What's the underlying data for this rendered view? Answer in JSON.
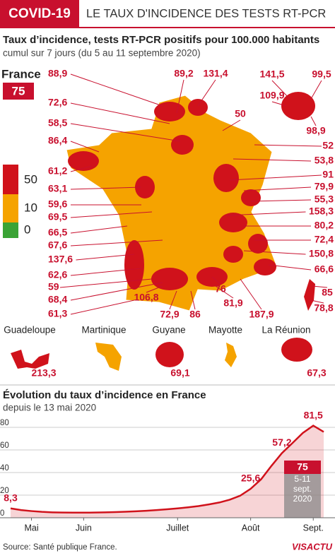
{
  "header": {
    "tag": "COVID-19",
    "title": "LE TAUX D'INCIDENCE DES TESTS RT-PCR"
  },
  "map": {
    "title": "Taux d’incidence, tests RT-PCR positifs pour 100.000 habitants",
    "subtitle": "cumul sur 7 jours (du 5 au 11 septembre 2020)",
    "country": "France",
    "country_value": "75",
    "legend": [
      {
        "label": "50",
        "color": "#d0121b"
      },
      {
        "label": "10",
        "color": "#f5a300"
      },
      {
        "label": "0",
        "color": "#3aa335"
      }
    ],
    "labels": [
      "88,9",
      "89,2",
      "131,4",
      "72,6",
      "58,5",
      "86,4",
      "61,2",
      "63,1",
      "59,6",
      "69,5",
      "66,5",
      "67,6",
      "137,6",
      "62,6",
      "59",
      "68,4",
      "61,3",
      "50",
      "52",
      "53,8",
      "91",
      "79,9",
      "55,3",
      "158,3",
      "80,2",
      "72,4",
      "150,8",
      "66,6",
      "76",
      "106,8",
      "72,9",
      "86",
      "81,9",
      "187,9",
      "141,5",
      "99,5",
      "109,9",
      "98,9",
      "85",
      "78,8"
    ],
    "overseas": [
      {
        "name": "Guadeloupe",
        "value": "213,3"
      },
      {
        "name": "Martinique"
      },
      {
        "name": "Guyane",
        "value": "69,1"
      },
      {
        "name": "Mayotte"
      },
      {
        "name": "La Réunion",
        "value": "67,3"
      }
    ]
  },
  "chart_data": {
    "type": "line",
    "title": "Évolution du taux d’incidence en France",
    "subtitle": "depuis le 13 mai 2020",
    "categories": [
      null,
      null,
      "Mai",
      null,
      null,
      null,
      null,
      "Juin",
      null,
      null,
      null,
      null,
      null,
      null,
      null,
      null,
      "Juillet",
      null,
      null,
      null,
      null,
      null,
      null,
      "Août",
      null,
      null,
      null,
      null,
      null,
      "Sept.",
      null
    ],
    "values": [
      8.3,
      6.8,
      5.9,
      5.2,
      4.8,
      4.6,
      4.5,
      4.5,
      4.6,
      4.8,
      5.0,
      5.3,
      5.7,
      6.2,
      6.8,
      7.5,
      8.3,
      9.2,
      10.3,
      11.8,
      13.5,
      16.0,
      19.5,
      25.6,
      34,
      46,
      57.2,
      66,
      75,
      81.5,
      76
    ],
    "value_labels": [
      "8,3",
      null,
      null,
      null,
      null,
      null,
      null,
      null,
      null,
      null,
      null,
      null,
      null,
      null,
      null,
      null,
      null,
      null,
      null,
      null,
      null,
      null,
      null,
      "25,6",
      null,
      null,
      "57,2",
      null,
      null,
      "81,5",
      null
    ],
    "color": "#d0121b",
    "ylim": [
      0,
      85
    ],
    "yticks": [
      0,
      20,
      40,
      60,
      80
    ],
    "grid": true,
    "current": "75",
    "current_period": "5-11 sept. 2020"
  },
  "footer": {
    "source": "Source: Santé publique France.",
    "logo": "VISACTU"
  }
}
